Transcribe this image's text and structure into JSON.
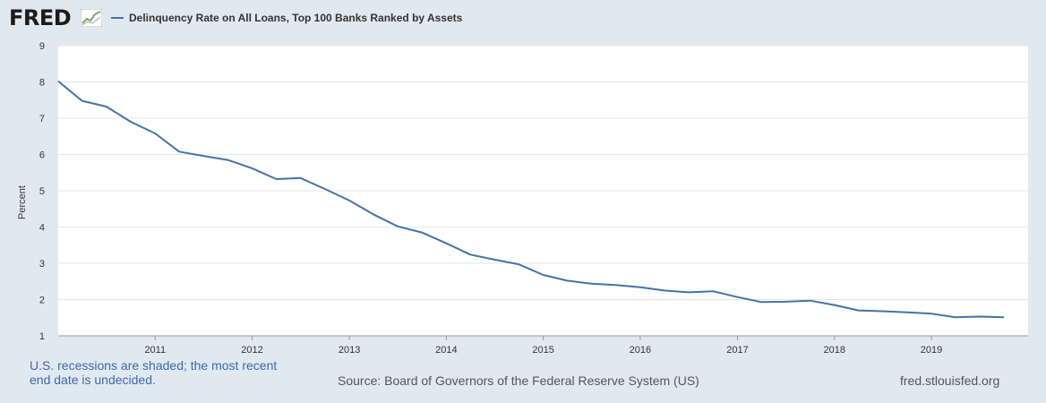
{
  "header": {
    "logo_text": "FRED",
    "legend_label": "Delinquency Rate on All Loans, Top 100 Banks Ranked by Assets"
  },
  "colors": {
    "series": "#4572a7",
    "plot_bg": "#ffffff",
    "page_bg": "#e1e9f0",
    "grid": "#e6e6e6"
  },
  "footer": {
    "note": "U.S. recessions are shaded; the most recent end date is undecided.",
    "source": "Source: Board of Governors of the Federal Reserve System (US)",
    "site": "fred.stlouisfed.org"
  },
  "chart_data": {
    "type": "line",
    "title": "",
    "xlabel": "",
    "ylabel": "Percent",
    "ylim": [
      1,
      9
    ],
    "yticks": [
      1,
      2,
      3,
      4,
      5,
      6,
      7,
      8,
      9
    ],
    "xlim": [
      "2010-01-01",
      "2019-12-31"
    ],
    "xticks": [
      "2011",
      "2012",
      "2013",
      "2014",
      "2015",
      "2016",
      "2017",
      "2018",
      "2019"
    ],
    "grid": true,
    "legend": "top-left",
    "series": [
      {
        "name": "Delinquency Rate on All Loans, Top 100 Banks Ranked by Assets",
        "x": [
          "2010-01-01",
          "2010-04-01",
          "2010-07-01",
          "2010-10-01",
          "2011-01-01",
          "2011-04-01",
          "2011-07-01",
          "2011-10-01",
          "2012-01-01",
          "2012-04-01",
          "2012-07-01",
          "2012-10-01",
          "2013-01-01",
          "2013-04-01",
          "2013-07-01",
          "2013-10-01",
          "2014-01-01",
          "2014-04-01",
          "2014-07-01",
          "2014-10-01",
          "2015-01-01",
          "2015-04-01",
          "2015-07-01",
          "2015-10-01",
          "2016-01-01",
          "2016-04-01",
          "2016-07-01",
          "2016-10-01",
          "2017-01-01",
          "2017-04-01",
          "2017-07-01",
          "2017-10-01",
          "2018-01-01",
          "2018-04-01",
          "2018-07-01",
          "2018-10-01",
          "2019-01-01",
          "2019-04-01",
          "2019-07-01",
          "2019-10-01"
        ],
        "values": [
          8.02,
          7.48,
          7.32,
          6.9,
          6.58,
          6.08,
          5.96,
          5.85,
          5.62,
          5.32,
          5.35,
          5.05,
          4.73,
          4.35,
          4.02,
          3.85,
          3.55,
          3.24,
          3.1,
          2.97,
          2.68,
          2.52,
          2.44,
          2.4,
          2.34,
          2.25,
          2.2,
          2.23,
          2.07,
          1.93,
          1.94,
          1.97,
          1.85,
          1.7,
          1.68,
          1.65,
          1.61,
          1.51,
          1.53,
          1.51
        ]
      }
    ]
  }
}
